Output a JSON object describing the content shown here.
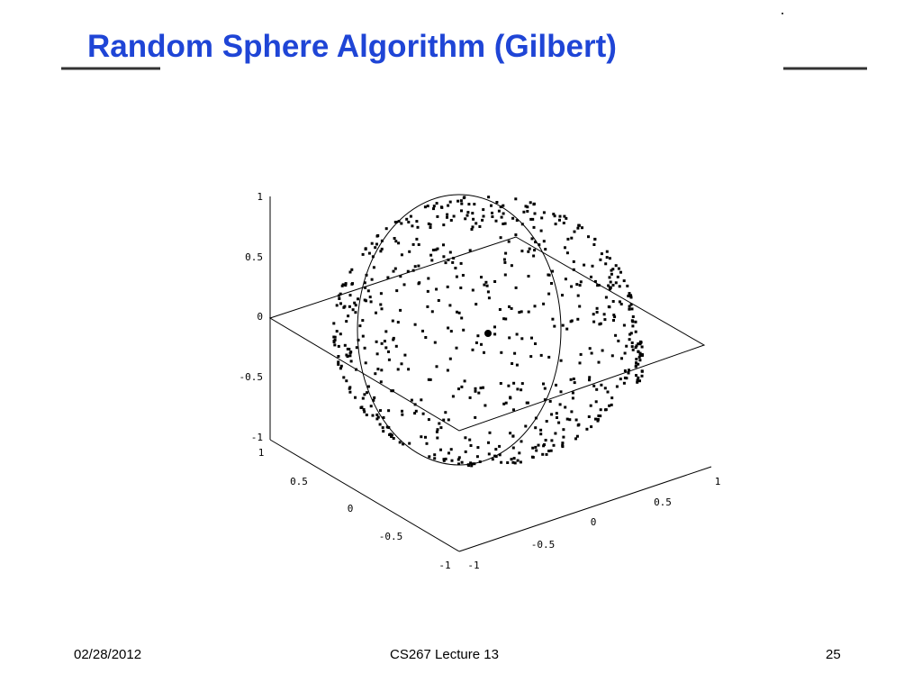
{
  "header": {
    "title": "Random Sphere Algorithm (Gilbert)"
  },
  "figure": {
    "z_ticks": [
      "1",
      "0.5",
      "0",
      "-0.5",
      "-1"
    ],
    "x_ticks": [
      "1",
      "0.5",
      "0",
      "-0.5",
      "-1"
    ],
    "y_ticks": [
      "-1",
      "-0.5",
      "0",
      "0.5",
      "1"
    ]
  },
  "footer": {
    "date": "02/28/2012",
    "course": "CS267 Lecture 13",
    "page": "25"
  }
}
